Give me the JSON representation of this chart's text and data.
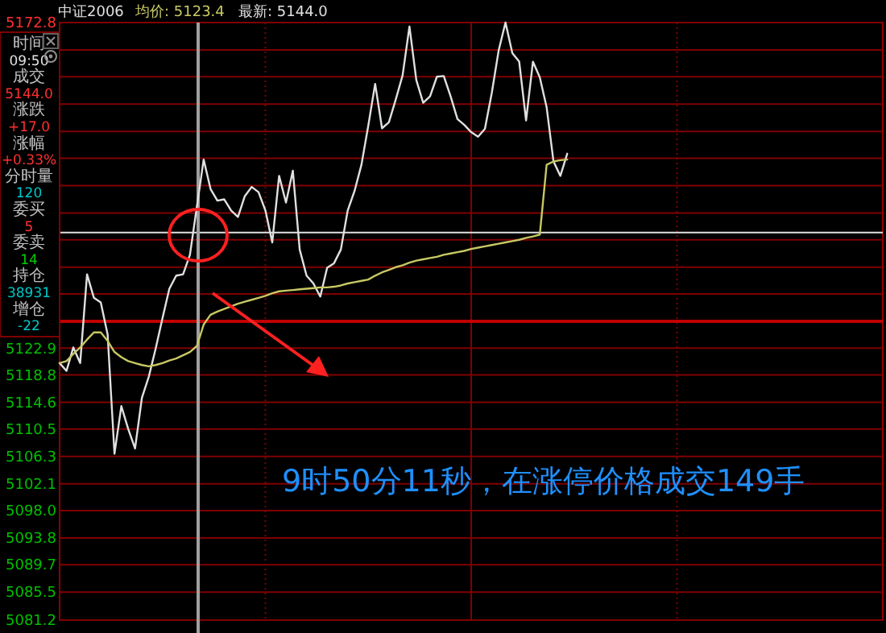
{
  "chart_data": [
    {
      "type": "line",
      "title": "中证2006",
      "annotations": [
        "均价: 5123.4",
        "最新: 5144.0",
        "9时50分11秒，在涨停价格成交149手"
      ],
      "categories": [
        null,
        null,
        null,
        null,
        null,
        null,
        null,
        null,
        null,
        null,
        null,
        null,
        null,
        null,
        null,
        null,
        null,
        null,
        null,
        null,
        null,
        null,
        null,
        null,
        null,
        null,
        null,
        null,
        null,
        null,
        null,
        null,
        null,
        null,
        null,
        null,
        null,
        null,
        null,
        null,
        null,
        null,
        null,
        null,
        null,
        null,
        null,
        null,
        null,
        null,
        null,
        null,
        null,
        null,
        null,
        null,
        null,
        null,
        null,
        null,
        null,
        null,
        null,
        null,
        null,
        null,
        null,
        null,
        null,
        null,
        null,
        null,
        null,
        null,
        null,
        null,
        null,
        null,
        null,
        null,
        null,
        null,
        null,
        null,
        null,
        null,
        null,
        null,
        null,
        null,
        null,
        null,
        null,
        null,
        null,
        null,
        null,
        null,
        null,
        null,
        null,
        null,
        null,
        null,
        null,
        null,
        null,
        null,
        null,
        null,
        null,
        null,
        null,
        null,
        null,
        null,
        null,
        null,
        null,
        null
      ],
      "ylim": [
        5081.2,
        5172.8
      ],
      "yticks": [
        {
          "value": 5172.8,
          "label": "5172.8"
        },
        {
          "value": 5168.6,
          "label": null
        },
        {
          "value": 5164.5,
          "label": null
        },
        {
          "value": 5160.3,
          "label": null
        },
        {
          "value": 5156.1,
          "label": null
        },
        {
          "value": 5152.0,
          "label": null
        },
        {
          "value": 5147.8,
          "label": null
        },
        {
          "value": 5143.6,
          "label": null
        },
        {
          "value": 5139.5,
          "label": null
        },
        {
          "value": 5135.3,
          "label": null
        },
        {
          "value": 5131.2,
          "label": null
        },
        {
          "value": 5127.0,
          "label": null
        },
        {
          "value": 5122.9,
          "label": "5122.9"
        },
        {
          "value": 5118.8,
          "label": "5118.8"
        },
        {
          "value": 5114.6,
          "label": "5114.6"
        },
        {
          "value": 5110.5,
          "label": "5110.5"
        },
        {
          "value": 5106.3,
          "label": "5106.3"
        },
        {
          "value": 5102.1,
          "label": "5102.1"
        },
        {
          "value": 5098.0,
          "label": "5098.0"
        },
        {
          "value": 5093.8,
          "label": "5093.8"
        },
        {
          "value": 5089.7,
          "label": "5089.7"
        },
        {
          "value": 5085.5,
          "label": "5085.5"
        },
        {
          "value": 5081.2,
          "label": "5081.2"
        }
      ],
      "grid": true,
      "tick_labels": "y",
      "ref_lines": [
        {
          "axis": "y",
          "value": 5127.0,
          "color": "#c00000"
        },
        {
          "axis": "y",
          "value": 5140.6,
          "color": "#e0e0e0"
        }
      ],
      "series": [
        {
          "color": "#e0e0e0",
          "values": [
            5120.6,
            5119.4,
            5123.0,
            5120.6,
            5134.2,
            5130.6,
            5129.9,
            5125.0,
            5106.7,
            5114.0,
            5110.5,
            5107.5,
            5115.3,
            5118.5,
            5122.8,
            5127.5,
            5132.0,
            5134.0,
            5134.2,
            5137.2,
            5144.5,
            5151.8,
            5147.3,
            5145.5,
            5145.7,
            5144.0,
            5143.0,
            5146.2,
            5147.6,
            5146.8,
            5144.0,
            5139.1,
            5149.3,
            5145.2,
            5150.1,
            5138.0,
            5134.0,
            5132.8,
            5130.8,
            5135.2,
            5135.9,
            5138.0,
            5144.0,
            5147.0,
            5151.0,
            5157.0,
            5163.4,
            5156.6,
            5157.5,
            5161.0,
            5164.7,
            5172.2,
            5164.0,
            5160.5,
            5161.5,
            5164.5,
            5164.6,
            5161.5,
            5158.0,
            5157.1,
            5156.0,
            5155.3,
            5156.5,
            5162.0,
            5168.5,
            5172.8,
            5168.1,
            5166.8,
            5157.8,
            5166.8,
            5164.4,
            5159.8,
            5151.5,
            5149.3,
            5152.7,
            null,
            null,
            null,
            null,
            null,
            null,
            null,
            null,
            null,
            null,
            null,
            null,
            null,
            null,
            null,
            null,
            null,
            null,
            null,
            null,
            null,
            null,
            null,
            null,
            null,
            null,
            null,
            null,
            null,
            null,
            null,
            null,
            null,
            null,
            null,
            null,
            null,
            null,
            null,
            null,
            null,
            null,
            null,
            null,
            null
          ]
        },
        {
          "color": "#c8c864",
          "values": [
            5120.6,
            5120.9,
            5122.0,
            5123.0,
            5124.2,
            5125.3,
            5125.3,
            5124.0,
            5122.3,
            5121.5,
            5120.9,
            5120.6,
            5120.3,
            5120.1,
            5120.3,
            5120.6,
            5121.0,
            5121.3,
            5121.8,
            5122.3,
            5123.2,
            5126.5,
            5128.0,
            5128.5,
            5128.9,
            5129.3,
            5129.7,
            5130.0,
            5130.3,
            5130.6,
            5130.9,
            5131.3,
            5131.6,
            5131.7,
            5131.8,
            5131.9,
            5132.0,
            5132.1,
            5132.2,
            5132.2,
            5132.3,
            5132.5,
            5132.8,
            5133.0,
            5133.2,
            5133.4,
            5134.0,
            5134.5,
            5134.9,
            5135.3,
            5135.6,
            5136.0,
            5136.3,
            5136.5,
            5136.7,
            5136.9,
            5137.2,
            5137.4,
            5137.6,
            5137.8,
            5138.1,
            5138.3,
            5138.5,
            5138.7,
            5138.9,
            5139.1,
            5139.3,
            5139.5,
            5139.8,
            5140.0,
            5140.3,
            5151.0,
            5151.5,
            5151.7,
            5151.8,
            null,
            null,
            null,
            null,
            null,
            null,
            null,
            null,
            null,
            null,
            null,
            null,
            null,
            null,
            null,
            null,
            null,
            null,
            null,
            null,
            null,
            null,
            null,
            null,
            null,
            null,
            null,
            null,
            null,
            null,
            null,
            null,
            null,
            null,
            null,
            null,
            null,
            null,
            null,
            null,
            null,
            null,
            null,
            null,
            null
          ]
        }
      ]
    },
    {
      "type": "other",
      "annotations": [
        "时间",
        "09:50",
        "成交",
        "5144.0",
        "涨跌",
        "+17.0",
        "涨幅",
        "+0.33%",
        "分时量",
        "120",
        "委买",
        "5",
        "委卖",
        "14",
        "持仓",
        "38931",
        "增仓",
        "-22"
      ]
    }
  ]
}
